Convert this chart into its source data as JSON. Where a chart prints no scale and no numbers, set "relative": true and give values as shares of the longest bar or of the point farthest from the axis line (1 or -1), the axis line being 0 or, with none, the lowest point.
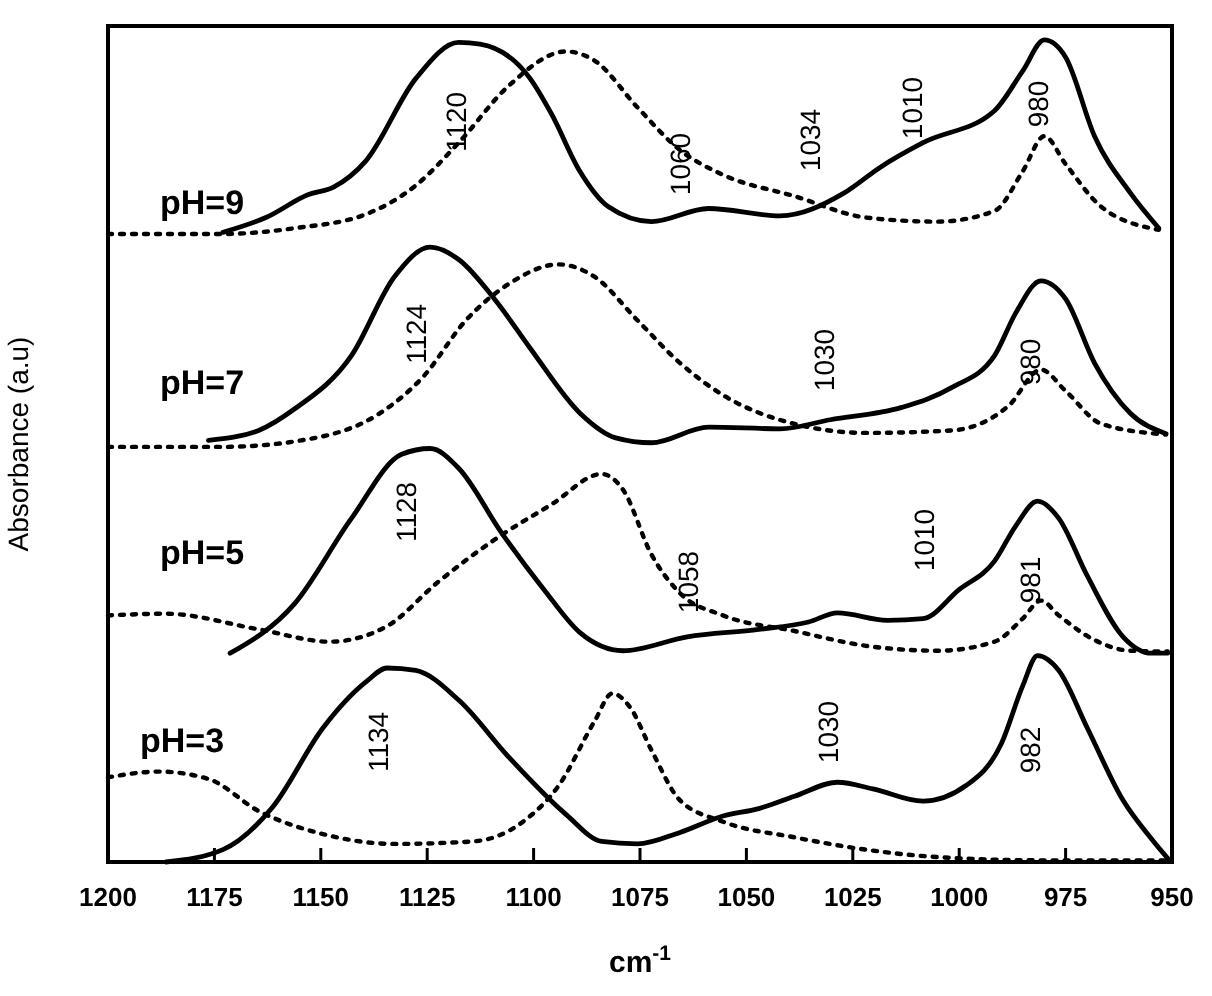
{
  "chart_data": {
    "type": "line",
    "relative": true,
    "xlabel": "cm$^{-1}$",
    "ylabel": "Absorbance (a.u)",
    "xlim": [
      1200,
      950
    ],
    "xticks": [
      1200,
      1175,
      1150,
      1125,
      1100,
      1075,
      1050,
      1025,
      1000,
      975,
      950
    ],
    "series": [
      {
        "color": "#000000",
        "line_style": "solid",
        "x": [
          1173,
          1162.9,
          1152.9,
          1147,
          1139.4,
          1127.7,
          1117.6,
          1112.6,
          1100.8,
          1095.8,
          1089.1,
          1082.4,
          1072.3,
          1058.9,
          1042.1,
          1027,
          1018.6,
          1008.5,
          991.7,
          985.1,
          980,
          975,
          968.2,
          959.8,
          953.1
        ],
        "values": [
          0.766,
          0.784,
          0.812,
          0.821,
          0.853,
          0.953,
          0.997,
          0.995,
          0.953,
          0.91,
          0.84,
          0.797,
          0.779,
          0.795,
          0.786,
          0.814,
          0.845,
          0.875,
          0.914,
          0.962,
          1,
          0.979,
          0.883,
          0.814,
          0.771
        ]
      },
      {
        "color": "#000000",
        "line_style": "dotted",
        "x": [
          1200,
          1173,
          1156.2,
          1139.4,
          1127.7,
          1117.6,
          1105.9,
          1092.4,
          1085.7,
          1075.6,
          1065.6,
          1055.5,
          1038.7,
          1021.9,
          1005.1,
          991.7,
          985.1,
          980,
          975,
          966.6,
          953.1
        ],
        "values": [
          0.764,
          0.764,
          0.771,
          0.788,
          0.823,
          0.875,
          0.944,
          0.986,
          0.975,
          0.918,
          0.866,
          0.836,
          0.81,
          0.784,
          0.779,
          0.792,
          0.84,
          0.883,
          0.849,
          0.797,
          0.769
        ]
      },
      {
        "color": "#000000",
        "line_style": "solid",
        "x": [
          1176.4,
          1164.6,
          1156.2,
          1142.8,
          1132.7,
          1124.3,
          1117.6,
          1109.2,
          1100.8,
          1089.1,
          1080.7,
          1072.3,
          1058.9,
          1042.1,
          1030.3,
          1013.5,
          1001.8,
          991.7,
          986.7,
          980.8,
          975,
          968.2,
          959.8,
          951.4
        ],
        "values": [
          0.513,
          0.525,
          0.551,
          0.616,
          0.712,
          0.748,
          0.733,
          0.685,
          0.625,
          0.546,
          0.516,
          0.51,
          0.529,
          0.527,
          0.538,
          0.553,
          0.577,
          0.616,
          0.668,
          0.707,
          0.685,
          0.607,
          0.546,
          0.521
        ]
      },
      {
        "color": "#000000",
        "line_style": "dotted",
        "x": [
          1200,
          1173,
          1151.2,
          1136.1,
          1126,
          1115.9,
          1105.9,
          1094.1,
          1085.7,
          1075.6,
          1065.6,
          1055.5,
          1038.7,
          1021.9,
          1001.8,
          988.4,
          980.8,
          975,
          966.6,
          951.4
        ],
        "values": [
          0.505,
          0.505,
          0.516,
          0.546,
          0.59,
          0.659,
          0.703,
          0.727,
          0.712,
          0.659,
          0.607,
          0.568,
          0.533,
          0.522,
          0.525,
          0.555,
          0.599,
          0.573,
          0.533,
          0.52
        ]
      },
      {
        "color": "#000000",
        "line_style": "solid",
        "x": [
          1171.3,
          1156.2,
          1142.8,
          1131,
          1124.3,
          1117.6,
          1107.6,
          1097.5,
          1089.1,
          1079,
          1063.9,
          1047.1,
          1035.4,
          1028.6,
          1016.9,
          1008.5,
          1000.1,
          991.7,
          986.7,
          981.6,
          976.6,
          969.9,
          961.5,
          954.8,
          951
        ],
        "values": [
          0.254,
          0.314,
          0.418,
          0.496,
          0.503,
          0.479,
          0.401,
          0.331,
          0.279,
          0.257,
          0.274,
          0.283,
          0.292,
          0.303,
          0.294,
          0.296,
          0.331,
          0.366,
          0.409,
          0.439,
          0.418,
          0.348,
          0.274,
          0.254,
          0.254
        ]
      },
      {
        "color": "#000000",
        "line_style": "dotted",
        "x": [
          1200,
          1186.4,
          1164.6,
          1147.8,
          1134.4,
          1122.6,
          1109.2,
          1095.8,
          1084,
          1079,
          1072.3,
          1065.6,
          1055.5,
          1038.7,
          1021.9,
          1005.1,
          991.7,
          985.1,
          980.8,
          976.6,
          968.2,
          959.8,
          951
        ],
        "values": [
          0.3,
          0.302,
          0.283,
          0.268,
          0.287,
          0.34,
          0.392,
          0.435,
          0.472,
          0.453,
          0.374,
          0.327,
          0.3,
          0.281,
          0.263,
          0.257,
          0.268,
          0.296,
          0.318,
          0.3,
          0.27,
          0.257,
          0.256
        ]
      },
      {
        "color": "#000000",
        "line_style": "solid",
        "x": [
          1186.4,
          1173,
          1161.3,
          1149.5,
          1139.4,
          1134.4,
          1127.7,
          1117.6,
          1105.9,
          1092.4,
          1084,
          1075.6,
          1065.6,
          1055.5,
          1047.1,
          1038.7,
          1028.6,
          1020.3,
          1008.5,
          998.4,
          990,
          985.1,
          981.6,
          976.6,
          969.9,
          961.5,
          954.8,
          950.6
        ],
        "values": [
          0,
          0.015,
          0.067,
          0.163,
          0.219,
          0.236,
          0.233,
          0.197,
          0.128,
          0.058,
          0.025,
          0.022,
          0.036,
          0.056,
          0.065,
          0.08,
          0.097,
          0.089,
          0.074,
          0.093,
          0.145,
          0.214,
          0.251,
          0.233,
          0.163,
          0.075,
          0.028,
          0.002
        ]
      },
      {
        "color": "#000000",
        "line_style": "dotted",
        "x": [
          1200,
          1188.1,
          1176.4,
          1164.6,
          1149.5,
          1132.7,
          1114.3,
          1102.5,
          1094.1,
          1085.7,
          1081.5,
          1077.3,
          1072.3,
          1065.6,
          1055.5,
          1038.7,
          1021.9,
          1005.1,
          980,
          950.6
        ],
        "values": [
          0.103,
          0.11,
          0.101,
          0.062,
          0.034,
          0.022,
          0.025,
          0.049,
          0.093,
          0.171,
          0.205,
          0.188,
          0.136,
          0.075,
          0.049,
          0.03,
          0.015,
          0.006,
          0.002,
          0.002
        ]
      }
    ],
    "annotations": [
      "pH=9",
      "pH=7",
      "pH=5",
      "pH=3",
      "1120",
      "1060",
      "1034",
      "1010",
      "980",
      "1124",
      "1030",
      "980",
      "1128",
      "1058",
      "1010",
      "981",
      "1134",
      "1030",
      "982"
    ]
  }
}
